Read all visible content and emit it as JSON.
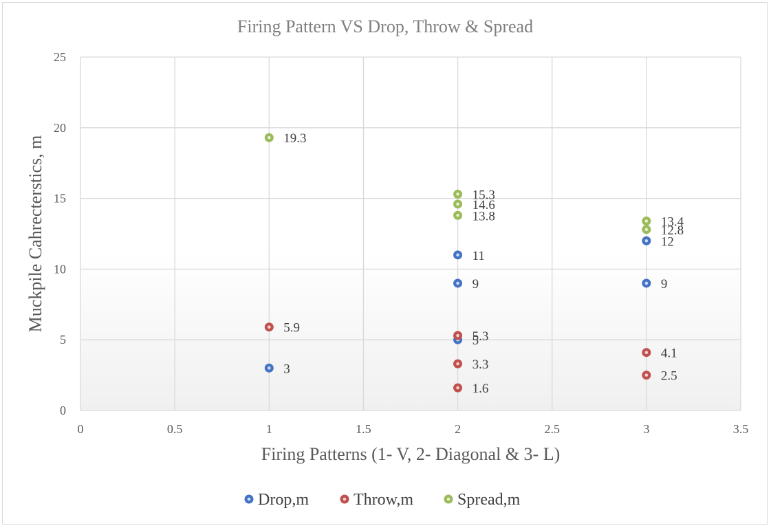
{
  "chart_data": {
    "type": "scatter",
    "title": "Firing Pattern VS Drop, Throw & Spread",
    "xlabel": "Firing Patterns (1- V, 2- Diagonal & 3- L)",
    "ylabel": "Muckpile Cahrecterstics, m",
    "xlim": [
      0,
      3.5
    ],
    "ylim": [
      0,
      25
    ],
    "xticks": [
      "0",
      "0.5",
      "1",
      "1.5",
      "2",
      "2.5",
      "3",
      "3.5"
    ],
    "yticks": [
      "0",
      "5",
      "10",
      "15",
      "20",
      "25"
    ],
    "grid": true,
    "legend_position": "bottom",
    "series": [
      {
        "name": "Drop,m",
        "color": "#4472c4",
        "points": [
          {
            "x": 1,
            "y": 3,
            "label": "3"
          },
          {
            "x": 2,
            "y": 11,
            "label": "11"
          },
          {
            "x": 2,
            "y": 9,
            "label": "9"
          },
          {
            "x": 2,
            "y": 5,
            "label": "5"
          },
          {
            "x": 3,
            "y": 12,
            "label": "12"
          },
          {
            "x": 3,
            "y": 9,
            "label": "9"
          }
        ]
      },
      {
        "name": "Throw,m",
        "color": "#c0504d",
        "points": [
          {
            "x": 1,
            "y": 5.9,
            "label": "5.9"
          },
          {
            "x": 2,
            "y": 5.3,
            "label": "5.3"
          },
          {
            "x": 2,
            "y": 3.3,
            "label": "3.3"
          },
          {
            "x": 2,
            "y": 1.6,
            "label": "1.6"
          },
          {
            "x": 3,
            "y": 4.1,
            "label": "4.1"
          },
          {
            "x": 3,
            "y": 2.5,
            "label": "2.5"
          }
        ]
      },
      {
        "name": "Spread,m",
        "color": "#9bbb59",
        "points": [
          {
            "x": 1,
            "y": 19.3,
            "label": "19.3"
          },
          {
            "x": 2,
            "y": 15.3,
            "label": "15.3"
          },
          {
            "x": 2,
            "y": 14.6,
            "label": "14.6"
          },
          {
            "x": 2,
            "y": 13.8,
            "label": "13.8"
          },
          {
            "x": 3,
            "y": 13.4,
            "label": "13.4"
          },
          {
            "x": 3,
            "y": 12.8,
            "label": "12.8"
          }
        ]
      }
    ]
  }
}
